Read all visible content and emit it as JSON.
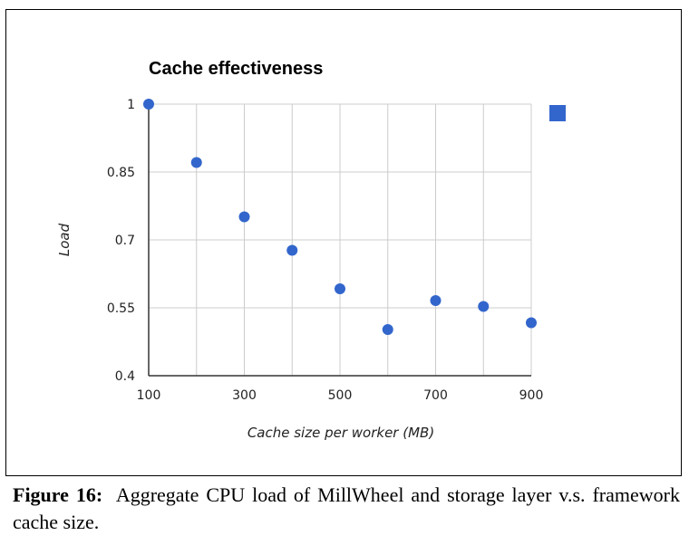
{
  "figure": {
    "caption_label": "Figure 16:",
    "caption_text": "Aggregate CPU load of MillWheel and storage layer v.s. framework cache size."
  },
  "colors": {
    "point": "#3366cc",
    "grid": "#cccccc",
    "axis": "#333333"
  },
  "chart_data": {
    "type": "scatter",
    "title": "Cache effectiveness",
    "xlabel": "Cache size per worker (MB)",
    "ylabel": "Load",
    "xlim": [
      100,
      900
    ],
    "ylim": [
      0.4,
      1
    ],
    "x_ticks": [
      "100",
      "300",
      "500",
      "700",
      "900"
    ],
    "y_ticks": [
      "1",
      "0.85",
      "0.7",
      "0.55",
      "0.4"
    ],
    "grid": true,
    "legend": "right, single square marker with no label",
    "series": [
      {
        "x": [
          100,
          200,
          300,
          400,
          500,
          600,
          700,
          800,
          900
        ],
        "y": [
          1.0,
          0.871,
          0.751,
          0.677,
          0.592,
          0.502,
          0.566,
          0.553,
          0.517
        ]
      }
    ]
  }
}
